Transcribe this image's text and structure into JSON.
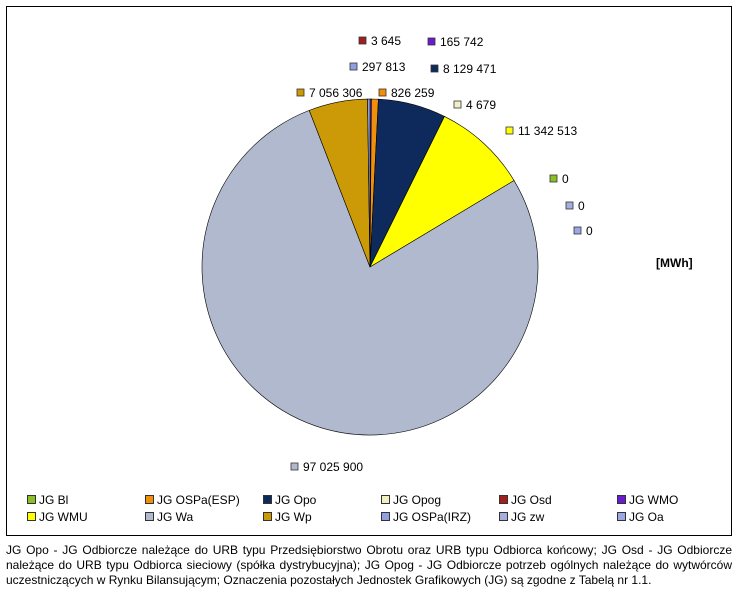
{
  "chart_data": {
    "type": "pie",
    "unit_label": "[MWh]",
    "slices": [
      {
        "name": "JG Osd",
        "value": 3645,
        "label": "3 645",
        "color": "#a02020"
      },
      {
        "name": "JG WMO",
        "value": 165742,
        "label": "165 742",
        "color": "#6a1bd0"
      },
      {
        "name": "JG OSPa(ESP)",
        "value": 826259,
        "label": "826 259",
        "color": "#f0900a"
      },
      {
        "name": "JG Opo",
        "value": 8129471,
        "label": "8 129 471",
        "color": "#0e2a5c"
      },
      {
        "name": "JG Opog",
        "value": 4679,
        "label": "4 679",
        "color": "#f3efc4"
      },
      {
        "name": "JG WMU",
        "value": 11342513,
        "label": "11 342 513",
        "color": "#ffff00"
      },
      {
        "name": "JG Bl",
        "value": 0,
        "label": "0",
        "color": "#8bbf2a"
      },
      {
        "name": "JG zw",
        "value": 0,
        "label": "0",
        "color": "#a6aedb"
      },
      {
        "name": "JG Oa",
        "value": 0,
        "label": "0",
        "color": "#9ca8e6"
      },
      {
        "name": "JG Wa",
        "value": 97025900,
        "label": "97 025 900",
        "color": "#b0b9ce"
      },
      {
        "name": "JG Wp",
        "value": 7056306,
        "label": "7 056 306",
        "color": "#cc9a06"
      },
      {
        "name": "JG OSPa(IRZ)",
        "value": 297813,
        "label": "297 813",
        "color": "#8fa0e0"
      }
    ],
    "legend": [
      {
        "label": "JG Bl",
        "color": "#8bbf2a"
      },
      {
        "label": "JG OSPa(ESP)",
        "color": "#f0900a"
      },
      {
        "label": "JG Opo",
        "color": "#0e2a5c"
      },
      {
        "label": "JG Opog",
        "color": "#f3efc4"
      },
      {
        "label": "JG Osd",
        "color": "#a02020"
      },
      {
        "label": "JG WMO",
        "color": "#6a1bd0"
      },
      {
        "label": "JG WMU",
        "color": "#ffff00"
      },
      {
        "label": "JG Wa",
        "color": "#b0b9ce"
      },
      {
        "label": "JG Wp",
        "color": "#cc9a06"
      },
      {
        "label": "JG OSPa(IRZ)",
        "color": "#8fa0e0"
      },
      {
        "label": "JG zw",
        "color": "#a6aedb"
      },
      {
        "label": "JG Oa",
        "color": "#9ca8e6"
      }
    ]
  },
  "footnote": "JG Opo - JG Odbiorcze należące do URB typu Przedsiębiorstwo Obrotu oraz URB typu Odbiorca końcowy; JG Osd - JG Odbiorcze należące do URB typu Odbiorca sieciowy (spółka dystrybucyjna); JG Opog - JG Odbiorcze potrzeb ogólnych należące do wytwórców uczestniczących w Rynku Bilansującym; Oznaczenia pozostałych Jednostek Grafikowych (JG) są zgodne z Tabelą nr 1.1."
}
